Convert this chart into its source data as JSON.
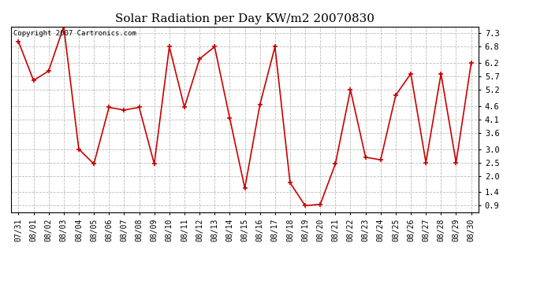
{
  "title": "Solar Radiation per Day KW/m2 20070830",
  "copyright_text": "Copyright 2007 Cartronics.com",
  "dates": [
    "07/31",
    "08/01",
    "08/02",
    "08/03",
    "08/04",
    "08/05",
    "08/06",
    "08/07",
    "08/08",
    "08/09",
    "08/10",
    "08/11",
    "08/12",
    "08/13",
    "08/14",
    "08/15",
    "08/16",
    "08/17",
    "08/18",
    "08/19",
    "08/20",
    "08/21",
    "08/22",
    "08/23",
    "08/24",
    "08/25",
    "08/26",
    "08/27",
    "08/28",
    "08/29",
    "08/30"
  ],
  "values": [
    7.0,
    5.55,
    5.9,
    7.55,
    3.0,
    2.45,
    4.55,
    4.45,
    4.55,
    2.45,
    6.8,
    4.55,
    6.35,
    6.8,
    4.15,
    1.55,
    4.65,
    6.8,
    1.75,
    0.9,
    0.95,
    2.45,
    5.2,
    2.7,
    2.6,
    5.0,
    5.8,
    2.5,
    5.8,
    2.5,
    6.2
  ],
  "line_color": "#cc0000",
  "marker": "+",
  "marker_size": 5,
  "marker_color": "#cc0000",
  "bg_color": "#ffffff",
  "grid_color": "#bbbbbb",
  "yticks": [
    0.9,
    1.4,
    2.0,
    2.5,
    3.0,
    3.6,
    4.1,
    4.6,
    5.2,
    5.7,
    6.2,
    6.8,
    7.3
  ],
  "ylim": [
    0.65,
    7.55
  ],
  "title_fontsize": 11,
  "copyright_fontsize": 6.5,
  "tick_fontsize": 7,
  "ytick_fontsize": 7.5
}
